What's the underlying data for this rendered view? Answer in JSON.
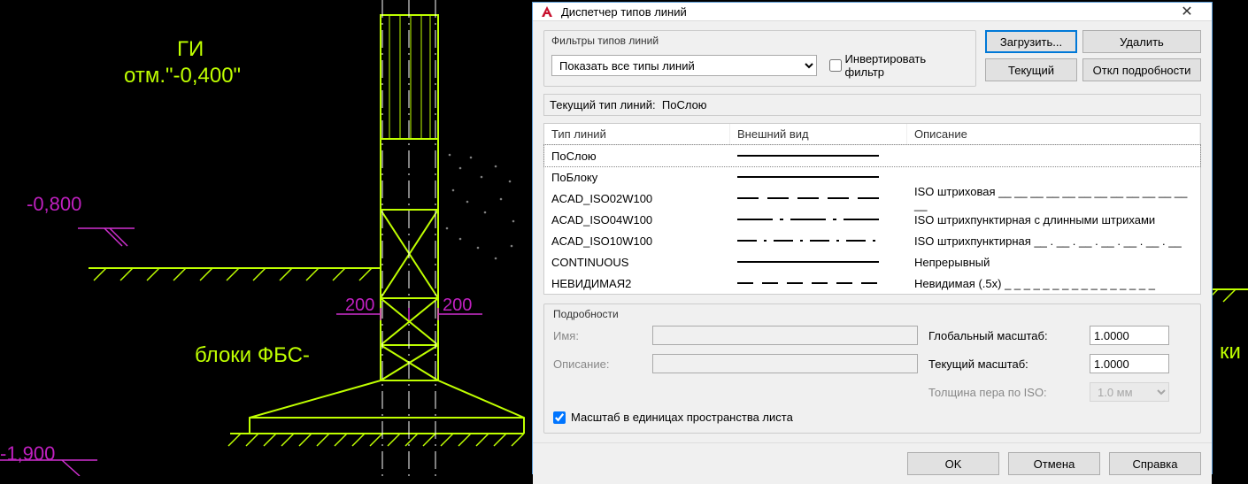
{
  "dialog": {
    "title": "Диспетчер типов линий",
    "filter_group_title": "Фильтры типов линий",
    "filter_select_value": "Показать все типы линий",
    "invert_filter_label": "Инвертировать фильтр",
    "invert_filter_checked": false,
    "btn_load": "Загрузить...",
    "btn_delete": "Удалить",
    "btn_current": "Текущий",
    "btn_toggle_details": "Откл подробности",
    "current_line_label": "Текущий тип линий:",
    "current_line_value": "ПоСлою",
    "columns": {
      "name": "Тип линий",
      "appearance": "Внешний вид",
      "description": "Описание"
    },
    "rows": [
      {
        "name": "ПоСлою",
        "pattern": "solid",
        "description": "",
        "selected": true
      },
      {
        "name": "ПоБлоку",
        "pattern": "solid",
        "description": ""
      },
      {
        "name": "ACAD_ISO02W100",
        "pattern": "dash",
        "description": "ISO штриховая __ __ __ __ __ __ __ __ __ __ __ __ __"
      },
      {
        "name": "ACAD_ISO04W100",
        "pattern": "dashdotlong",
        "description": "ISO штрихпунктирная с длинными штрихами"
      },
      {
        "name": "ACAD_ISO10W100",
        "pattern": "dashdot",
        "description": "ISO штрихпунктирная __ . __ . __ . __ . __ . __ . __"
      },
      {
        "name": "CONTINUOUS",
        "pattern": "solid",
        "description": "Непрерывный"
      },
      {
        "name": "НЕВИДИМАЯ2",
        "pattern": "shortdash",
        "description": "Невидимая (.5x) _ _ _ _ _ _ _ _ _ _ _ _ _ _ _ _"
      }
    ],
    "details": {
      "group_title": "Подробности",
      "name_label": "Имя:",
      "name_value": "",
      "desc_label": "Описание:",
      "desc_value": "",
      "global_scale_label": "Глобальный масштаб:",
      "global_scale_value": "1.0000",
      "current_scale_label": "Текущий масштаб:",
      "current_scale_value": "1.0000",
      "iso_pen_label": "Толщина пера по ISO:",
      "iso_pen_value": "1.0 мм",
      "paperspace_units_label": "Масштаб в единицах пространства листа",
      "paperspace_units_checked": true
    },
    "btn_ok": "OK",
    "btn_cancel": "Отмена",
    "btn_help": "Справка"
  },
  "cad": {
    "label_gi": "ГИ",
    "label_otm": "отм.\"-0,400\"",
    "label_bloki": "блоки ФБС-",
    "dim_minus08": "-0,800",
    "dim_minus19": "-1,900",
    "dim_200a": "200",
    "dim_200b": "200",
    "label_ki": "ки",
    "colors": {
      "lime": "#bfff00",
      "magenta": "#d030d0",
      "white": "#ffffff",
      "gray": "#808080"
    }
  }
}
